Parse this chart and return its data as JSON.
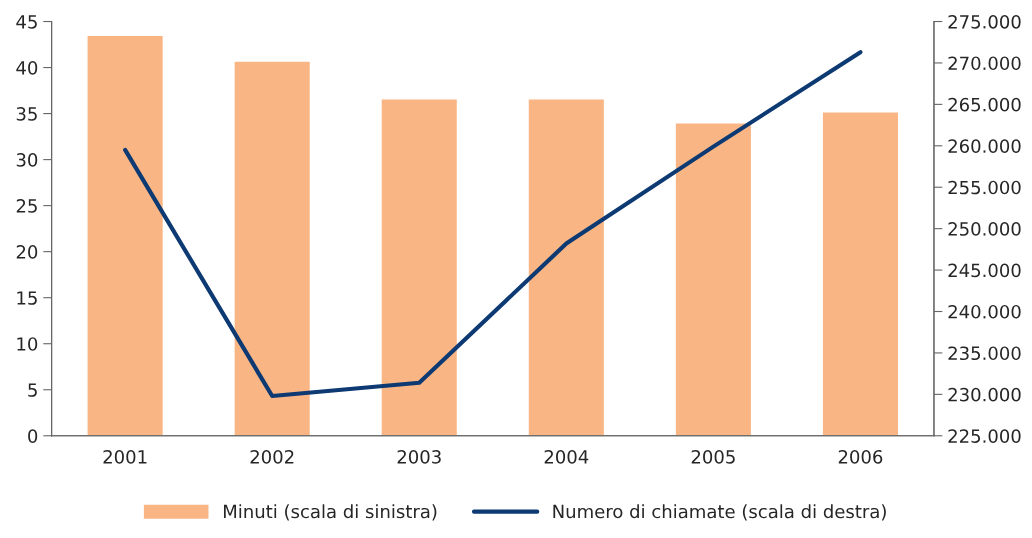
{
  "chart_data": {
    "type": "bar",
    "categories": [
      "2001",
      "2002",
      "2003",
      "2004",
      "2005",
      "2006"
    ],
    "series": [
      {
        "name": "Minuti (scala di sinistra)",
        "color": "#f9b584",
        "values": [
          43.5,
          40.7,
          36.6,
          36.6,
          34.0,
          35.2
        ]
      },
      {
        "name": "Numero di chiamate (scala di destra)",
        "type": "line",
        "axis": "y2",
        "color": "#0d3a73",
        "values": [
          259500,
          229800,
          231400,
          248200,
          259900,
          271300
        ]
      }
    ],
    "ylim": [
      0,
      45
    ],
    "yticks": [
      0,
      5,
      10,
      15,
      20,
      25,
      30,
      35,
      40,
      45
    ],
    "y2lim": [
      225000,
      275000
    ],
    "y2ticks": [
      {
        "value": 225000,
        "label": "225.000"
      },
      {
        "value": 230000,
        "label": "230.000"
      },
      {
        "value": 235000,
        "label": "235.000"
      },
      {
        "value": 240000,
        "label": "240.000"
      },
      {
        "value": 245000,
        "label": "245.000"
      },
      {
        "value": 250000,
        "label": "250.000"
      },
      {
        "value": 255000,
        "label": "255.000"
      },
      {
        "value": 260000,
        "label": "260.000"
      },
      {
        "value": 265000,
        "label": "265.000"
      },
      {
        "value": 270000,
        "label": "270.000"
      },
      {
        "value": 275000,
        "label": "275.000"
      }
    ],
    "grid": false,
    "legend": "bottom",
    "marker": "none",
    "line_style": "solid"
  }
}
